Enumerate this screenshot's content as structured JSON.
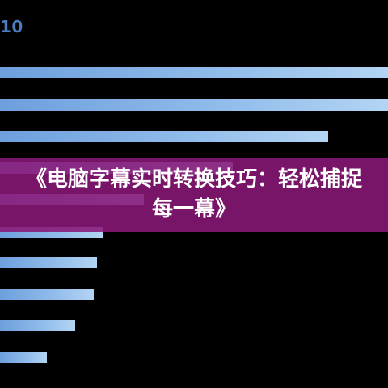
{
  "corner_label": "10",
  "title": "《电脑字幕实时转换技巧：轻松捕捉每一幕》",
  "colors": {
    "background": "#000000",
    "bar_start": "#6e9fdd",
    "bar_end": "#b3d4f3",
    "banner": "#8a1878",
    "label": "#4a7cc0",
    "title": "#ffffff"
  }
}
